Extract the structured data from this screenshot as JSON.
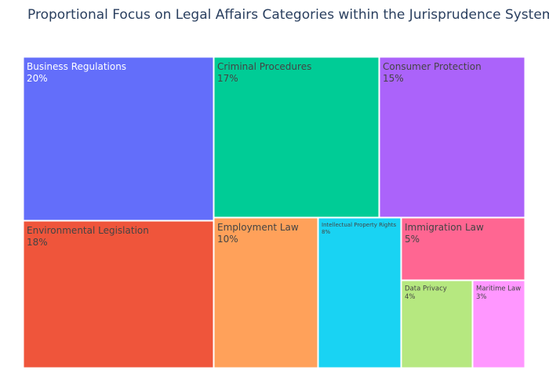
{
  "chart_data": {
    "type": "treemap",
    "title": "Proportional Focus on Legal Affairs Categories within the Jurisprudence System",
    "items": [
      {
        "label": "Business Regulations",
        "value": 20,
        "value_label": "20%",
        "color": "#636efa",
        "text_color": "#ffffff"
      },
      {
        "label": "Environmental Legislation",
        "value": 18,
        "value_label": "18%",
        "color": "#ef553b",
        "text_color": "#444444"
      },
      {
        "label": "Criminal Procedures",
        "value": 17,
        "value_label": "17%",
        "color": "#00cc96",
        "text_color": "#444444"
      },
      {
        "label": "Consumer Protection",
        "value": 15,
        "value_label": "15%",
        "color": "#ab63fa",
        "text_color": "#444444"
      },
      {
        "label": "Employment Law",
        "value": 10,
        "value_label": "10%",
        "color": "#ffa15a",
        "text_color": "#444444"
      },
      {
        "label": "Intellectual Property Rights",
        "value": 8,
        "value_label": "8%",
        "color": "#19d3f3",
        "text_color": "#444444"
      },
      {
        "label": "Immigration Law",
        "value": 5,
        "value_label": "5%",
        "color": "#ff6692",
        "text_color": "#444444"
      },
      {
        "label": "Data Privacy",
        "value": 4,
        "value_label": "4%",
        "color": "#b6e880",
        "text_color": "#444444"
      },
      {
        "label": "Maritime Law",
        "value": 3,
        "value_label": "3%",
        "color": "#ff97ff",
        "text_color": "#444444"
      }
    ]
  }
}
